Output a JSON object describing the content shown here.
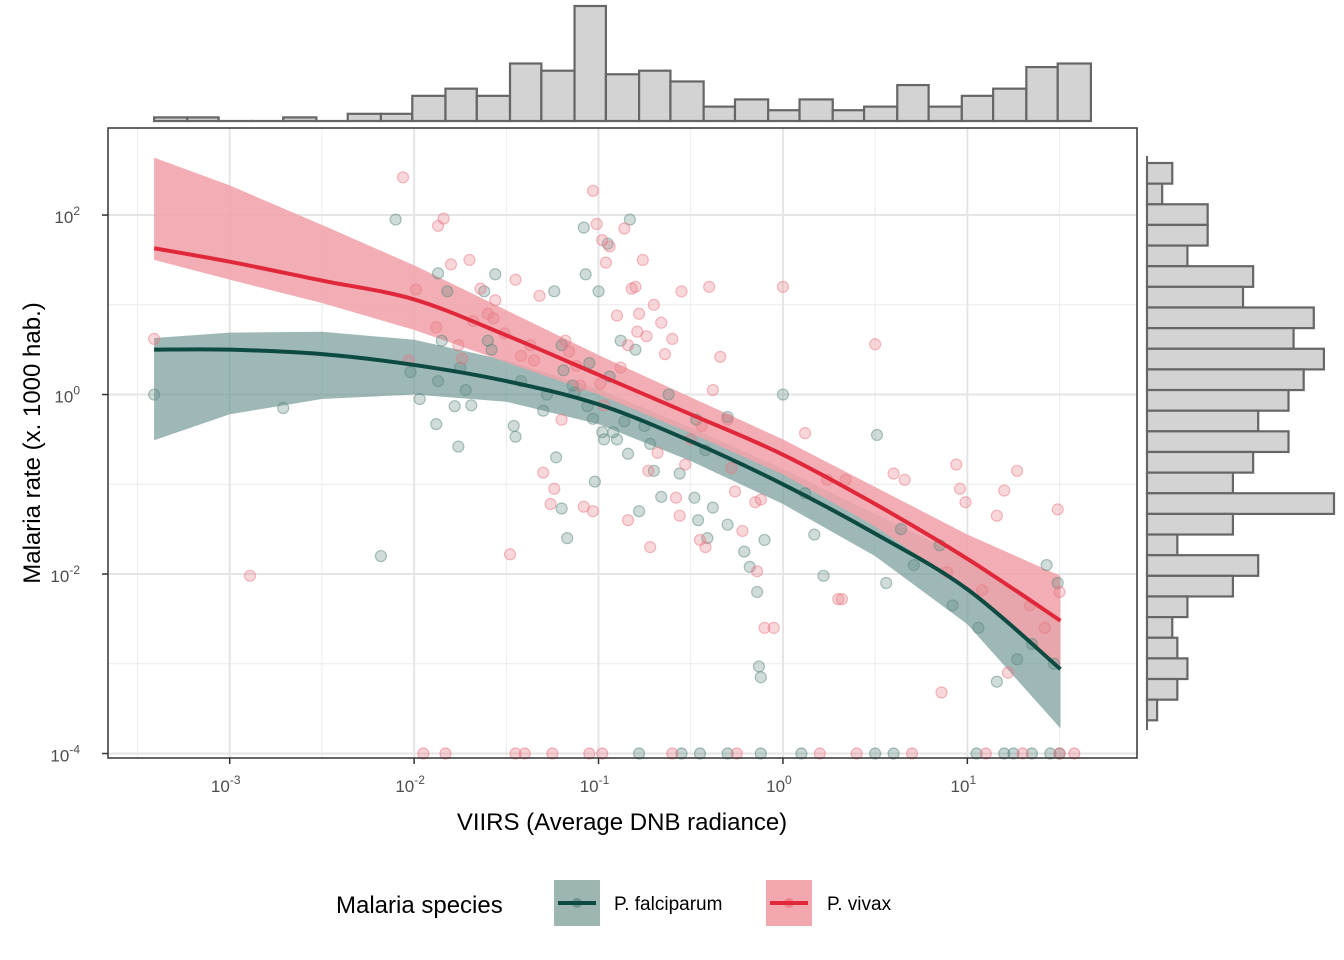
{
  "chart_data": {
    "type": "scatter",
    "title": "",
    "xlabel": "VIIRS (Average DNB radiance)",
    "ylabel": "Malaria rate (x. 1000 hab.)",
    "x_scale": "log10",
    "y_scale": "log10",
    "xlim_log10": [
      -3.66,
      1.92
    ],
    "ylim_log10": [
      -4.05,
      2.97
    ],
    "x_ticks": [
      {
        "log10": -3,
        "base": "10",
        "exp": "-3"
      },
      {
        "log10": -2,
        "base": "10",
        "exp": "-2"
      },
      {
        "log10": -1,
        "base": "10",
        "exp": "-1"
      },
      {
        "log10": 0,
        "base": "10",
        "exp": "0"
      },
      {
        "log10": 1,
        "base": "10",
        "exp": "1"
      }
    ],
    "y_ticks": [
      {
        "log10": 2,
        "base": "10",
        "exp": "2"
      },
      {
        "log10": 0,
        "base": "10",
        "exp": "0"
      },
      {
        "log10": -2,
        "base": "10",
        "exp": "-2"
      },
      {
        "log10": -4,
        "base": "10",
        "exp": "-4"
      }
    ],
    "grid": true,
    "legend": {
      "title": "Malaria species",
      "placement": "bottom",
      "entries": [
        {
          "label": "P. falciparum",
          "color": "#0d4a42",
          "fill": "#9db6b2"
        },
        {
          "label": "P. vivax",
          "color": "#e0283a",
          "fill": "#f2a8ae"
        }
      ]
    },
    "series": [
      {
        "name": "P. falciparum",
        "line_color": "#0d4a42",
        "point_color": "#5f8a84",
        "band_color": "#6f9793",
        "fit_x_log10": [
          -3.41,
          -3.0,
          -2.5,
          -2.0,
          -1.5,
          -1.0,
          -0.5,
          0.0,
          0.5,
          1.0,
          1.505
        ],
        "fit_y_log10": [
          0.5,
          0.5,
          0.45,
          0.33,
          0.15,
          -0.11,
          -0.52,
          -1.0,
          -1.55,
          -2.17,
          -3.06
        ],
        "band_upper_log10": [
          0.63,
          0.69,
          0.7,
          0.61,
          0.38,
          0.06,
          -0.37,
          -0.83,
          -1.33,
          -1.83,
          -2.5
        ],
        "band_lower_log10": [
          -0.51,
          -0.22,
          -0.05,
          0.0,
          -0.08,
          -0.33,
          -0.74,
          -1.22,
          -1.8,
          -2.56,
          -3.72
        ],
        "points": [
          [
            -3.41,
            0.0
          ],
          [
            -2.71,
            -0.15
          ],
          [
            -2.18,
            -1.8
          ],
          [
            -2.02,
            0.25
          ],
          [
            -1.87,
            0.15
          ],
          [
            -1.78,
            -0.13
          ],
          [
            -2.1,
            1.95
          ],
          [
            -1.97,
            -0.05
          ],
          [
            -1.88,
            -0.33
          ],
          [
            -1.87,
            1.35
          ],
          [
            -1.85,
            0.6
          ],
          [
            -1.82,
            1.15
          ],
          [
            -1.76,
            -0.58
          ],
          [
            -1.75,
            0.3
          ],
          [
            -1.72,
            0.05
          ],
          [
            -1.69,
            -0.12
          ],
          [
            -1.62,
            1.15
          ],
          [
            -1.6,
            0.6
          ],
          [
            -1.58,
            0.5
          ],
          [
            -1.56,
            1.34
          ],
          [
            -1.46,
            -0.35
          ],
          [
            -1.45,
            -0.47
          ],
          [
            -1.42,
            0.15
          ],
          [
            -1.3,
            -0.18
          ],
          [
            -1.28,
            0.0
          ],
          [
            -1.24,
            1.15
          ],
          [
            -1.23,
            -0.7
          ],
          [
            -1.2,
            -1.27
          ],
          [
            -1.2,
            0.55
          ],
          [
            -1.19,
            0.27
          ],
          [
            -1.17,
            -1.6
          ],
          [
            -1.14,
            0.1
          ],
          [
            -1.13,
            0.02
          ],
          [
            -1.08,
            1.86
          ],
          [
            -1.07,
            1.34
          ],
          [
            -1.06,
            -0.13
          ],
          [
            -1.05,
            0.35
          ],
          [
            -1.03,
            -0.27
          ],
          [
            -1.02,
            -0.97
          ],
          [
            -1.0,
            1.15
          ],
          [
            -0.98,
            -0.42
          ],
          [
            -0.97,
            -0.5
          ],
          [
            -0.95,
            1.68
          ],
          [
            -0.94,
            0.2
          ],
          [
            -0.92,
            -0.42
          ],
          [
            -0.9,
            -0.5
          ],
          [
            -0.88,
            0.6
          ],
          [
            -0.86,
            -0.3
          ],
          [
            -0.84,
            -0.66
          ],
          [
            -0.83,
            1.95
          ],
          [
            -0.8,
            0.5
          ],
          [
            -0.78,
            -1.3
          ],
          [
            -0.75,
            -0.35
          ],
          [
            -0.72,
            -0.55
          ],
          [
            -0.7,
            -0.85
          ],
          [
            -0.66,
            -1.14
          ],
          [
            -0.62,
            0.0
          ],
          [
            -0.56,
            -0.88
          ],
          [
            -0.48,
            -1.15
          ],
          [
            -0.47,
            -0.28
          ],
          [
            -0.46,
            -1.4
          ],
          [
            -0.42,
            -0.62
          ],
          [
            -0.41,
            -1.6
          ],
          [
            -0.38,
            -1.26
          ],
          [
            -0.3,
            -1.45
          ],
          [
            -0.3,
            -0.25
          ],
          [
            -0.21,
            -1.75
          ],
          [
            -0.18,
            -1.92
          ],
          [
            -0.14,
            -2.2
          ],
          [
            -0.13,
            -3.03
          ],
          [
            -0.12,
            -3.15
          ],
          [
            -0.1,
            -1.62
          ],
          [
            0.0,
            0.0
          ],
          [
            0.12,
            -1.1
          ],
          [
            0.17,
            -1.56
          ],
          [
            0.22,
            -2.02
          ],
          [
            0.51,
            -0.45
          ],
          [
            0.56,
            -2.1
          ],
          [
            0.64,
            -1.5
          ],
          [
            0.71,
            -1.9
          ],
          [
            0.85,
            -1.68
          ],
          [
            0.92,
            -2.35
          ],
          [
            1.06,
            -2.6
          ],
          [
            1.16,
            -3.2
          ],
          [
            1.27,
            -2.95
          ],
          [
            1.35,
            -2.78
          ],
          [
            1.43,
            -1.9
          ],
          [
            1.47,
            -3.0
          ],
          [
            1.49,
            -2.1
          ]
        ],
        "zero_points_x_log10": [
          -0.78,
          -0.55,
          -0.45,
          -0.3,
          -0.12,
          0.1,
          0.5,
          0.6,
          1.05,
          1.2,
          1.25,
          1.35,
          1.45,
          1.5
        ]
      },
      {
        "name": "P. vivax",
        "line_color": "#e0283a",
        "point_color": "#e97a86",
        "band_color": "#f0a3aa",
        "fit_x_log10": [
          -3.41,
          -3.0,
          -2.5,
          -2.0,
          -1.5,
          -1.0,
          -0.5,
          0.0,
          0.5,
          1.0,
          1.505
        ],
        "fit_y_log10": [
          1.63,
          1.48,
          1.27,
          1.06,
          0.66,
          0.22,
          -0.22,
          -0.67,
          -1.22,
          -1.83,
          -2.52
        ],
        "band_upper_log10": [
          2.64,
          2.33,
          1.89,
          1.44,
          0.94,
          0.44,
          -0.03,
          -0.5,
          -1.03,
          -1.56,
          -2.02
        ],
        "band_lower_log10": [
          1.5,
          1.28,
          1.02,
          0.72,
          0.36,
          0.0,
          -0.43,
          -0.89,
          -1.47,
          -2.17,
          -3.06
        ],
        "points": [
          [
            -3.41,
            0.62
          ],
          [
            -2.89,
            -2.02
          ],
          [
            -2.06,
            2.42
          ],
          [
            -2.03,
            0.38
          ],
          [
            -1.99,
            1.17
          ],
          [
            -1.88,
            0.75
          ],
          [
            -1.87,
            1.88
          ],
          [
            -1.84,
            1.96
          ],
          [
            -1.8,
            1.45
          ],
          [
            -1.76,
            0.55
          ],
          [
            -1.74,
            0.4
          ],
          [
            -1.7,
            1.5
          ],
          [
            -1.68,
            0.82
          ],
          [
            -1.64,
            1.18
          ],
          [
            -1.6,
            0.9
          ],
          [
            -1.57,
            0.85
          ],
          [
            -1.56,
            1.05
          ],
          [
            -1.51,
            0.68
          ],
          [
            -1.48,
            -1.78
          ],
          [
            -1.45,
            1.28
          ],
          [
            -1.42,
            0.43
          ],
          [
            -1.37,
            0.55
          ],
          [
            -1.35,
            0.38
          ],
          [
            -1.32,
            1.1
          ],
          [
            -1.3,
            -0.87
          ],
          [
            -1.26,
            -1.22
          ],
          [
            -1.24,
            -1.05
          ],
          [
            -1.2,
            -0.28
          ],
          [
            -1.18,
            0.6
          ],
          [
            -1.16,
            0.48
          ],
          [
            -1.12,
            0.32
          ],
          [
            -1.1,
            0.1
          ],
          [
            -1.08,
            -1.25
          ],
          [
            -1.03,
            -1.3
          ],
          [
            -1.03,
            2.27
          ],
          [
            -1.01,
            1.9
          ],
          [
            -0.99,
            0.12
          ],
          [
            -0.98,
            1.72
          ],
          [
            -0.97,
            -0.12
          ],
          [
            -0.96,
            1.47
          ],
          [
            -0.94,
            1.65
          ],
          [
            -0.9,
            0.88
          ],
          [
            -0.88,
            0.3
          ],
          [
            -0.86,
            1.85
          ],
          [
            -0.84,
            0.55
          ],
          [
            -0.84,
            -1.4
          ],
          [
            -0.82,
            1.18
          ],
          [
            -0.8,
            1.2
          ],
          [
            -0.79,
            0.7
          ],
          [
            -0.78,
            0.9
          ],
          [
            -0.76,
            1.5
          ],
          [
            -0.74,
            0.65
          ],
          [
            -0.73,
            -0.85
          ],
          [
            -0.72,
            -1.7
          ],
          [
            -0.7,
            1.0
          ],
          [
            -0.68,
            -0.65
          ],
          [
            -0.66,
            0.8
          ],
          [
            -0.64,
            0.45
          ],
          [
            -0.6,
            0.62
          ],
          [
            -0.58,
            -1.15
          ],
          [
            -0.56,
            -1.35
          ],
          [
            -0.55,
            1.15
          ],
          [
            -0.53,
            -0.78
          ],
          [
            -0.5,
            -0.5
          ],
          [
            -0.45,
            -1.62
          ],
          [
            -0.44,
            -0.35
          ],
          [
            -0.42,
            -1.7
          ],
          [
            -0.4,
            1.2
          ],
          [
            -0.38,
            0.05
          ],
          [
            -0.34,
            0.42
          ],
          [
            -0.3,
            -0.28
          ],
          [
            -0.28,
            -0.82
          ],
          [
            -0.26,
            -1.08
          ],
          [
            -0.22,
            -1.52
          ],
          [
            -0.15,
            -1.2
          ],
          [
            -0.14,
            -1.97
          ],
          [
            -0.12,
            -1.17
          ],
          [
            -0.1,
            -2.6
          ],
          [
            -0.05,
            -2.6
          ],
          [
            0.0,
            1.2
          ],
          [
            0.12,
            -0.43
          ],
          [
            0.24,
            -0.95
          ],
          [
            0.3,
            -2.28
          ],
          [
            0.32,
            -2.28
          ],
          [
            0.34,
            -0.95
          ],
          [
            0.5,
            0.56
          ],
          [
            0.6,
            -0.88
          ],
          [
            0.66,
            -0.95
          ],
          [
            0.86,
            -3.32
          ],
          [
            0.89,
            -1.98
          ],
          [
            0.94,
            -0.78
          ],
          [
            0.96,
            -1.05
          ],
          [
            0.99,
            -1.2
          ],
          [
            1.08,
            -2.18
          ],
          [
            1.16,
            -1.35
          ],
          [
            1.2,
            -1.07
          ],
          [
            1.22,
            -3.1
          ],
          [
            1.27,
            -0.85
          ],
          [
            1.34,
            -2.35
          ],
          [
            1.42,
            -2.6
          ],
          [
            1.49,
            -1.28
          ],
          [
            1.5,
            -2.2
          ]
        ],
        "zero_points_x_log10": [
          -1.95,
          -1.83,
          -1.45,
          -1.4,
          -1.25,
          -1.05,
          -0.98,
          -0.6,
          -0.25,
          0.2,
          0.4,
          0.7,
          1.1,
          1.3,
          1.5,
          1.58
        ]
      }
    ],
    "top_histogram": {
      "bin_edges_log10": [
        -3.41,
        -3.23,
        -3.06,
        -2.88,
        -2.71,
        -2.53,
        -2.36,
        -2.18,
        -2.01,
        -1.83,
        -1.66,
        -1.48,
        -1.31,
        -1.13,
        -0.96,
        -0.78,
        -0.61,
        -0.43,
        -0.26,
        -0.08,
        0.09,
        0.27,
        0.44,
        0.62,
        0.79,
        0.97,
        1.14,
        1.32,
        1.49,
        1.67
      ],
      "counts": [
        1,
        1,
        0,
        0,
        1,
        0,
        2,
        2,
        7,
        9,
        7,
        16,
        14,
        32,
        13,
        14,
        11,
        4,
        6,
        3,
        6,
        3,
        4,
        10,
        4,
        7,
        9,
        15,
        16
      ]
    },
    "right_histogram": {
      "bin_edges_log10": [
        2.58,
        2.35,
        2.12,
        1.89,
        1.66,
        1.43,
        1.2,
        0.97,
        0.74,
        0.51,
        0.28,
        0.05,
        -0.18,
        -0.41,
        -0.64,
        -0.87,
        -1.1,
        -1.33,
        -1.56,
        -1.79,
        -2.02,
        -2.25,
        -2.48,
        -2.71,
        -2.94,
        -3.17,
        -3.4,
        -3.63
      ],
      "counts": [
        5,
        3,
        12,
        12,
        8,
        21,
        19,
        33,
        29,
        35,
        31,
        28,
        22,
        28,
        21,
        17,
        37,
        17,
        6,
        22,
        17,
        8,
        5,
        6,
        8,
        6,
        2
      ]
    }
  }
}
